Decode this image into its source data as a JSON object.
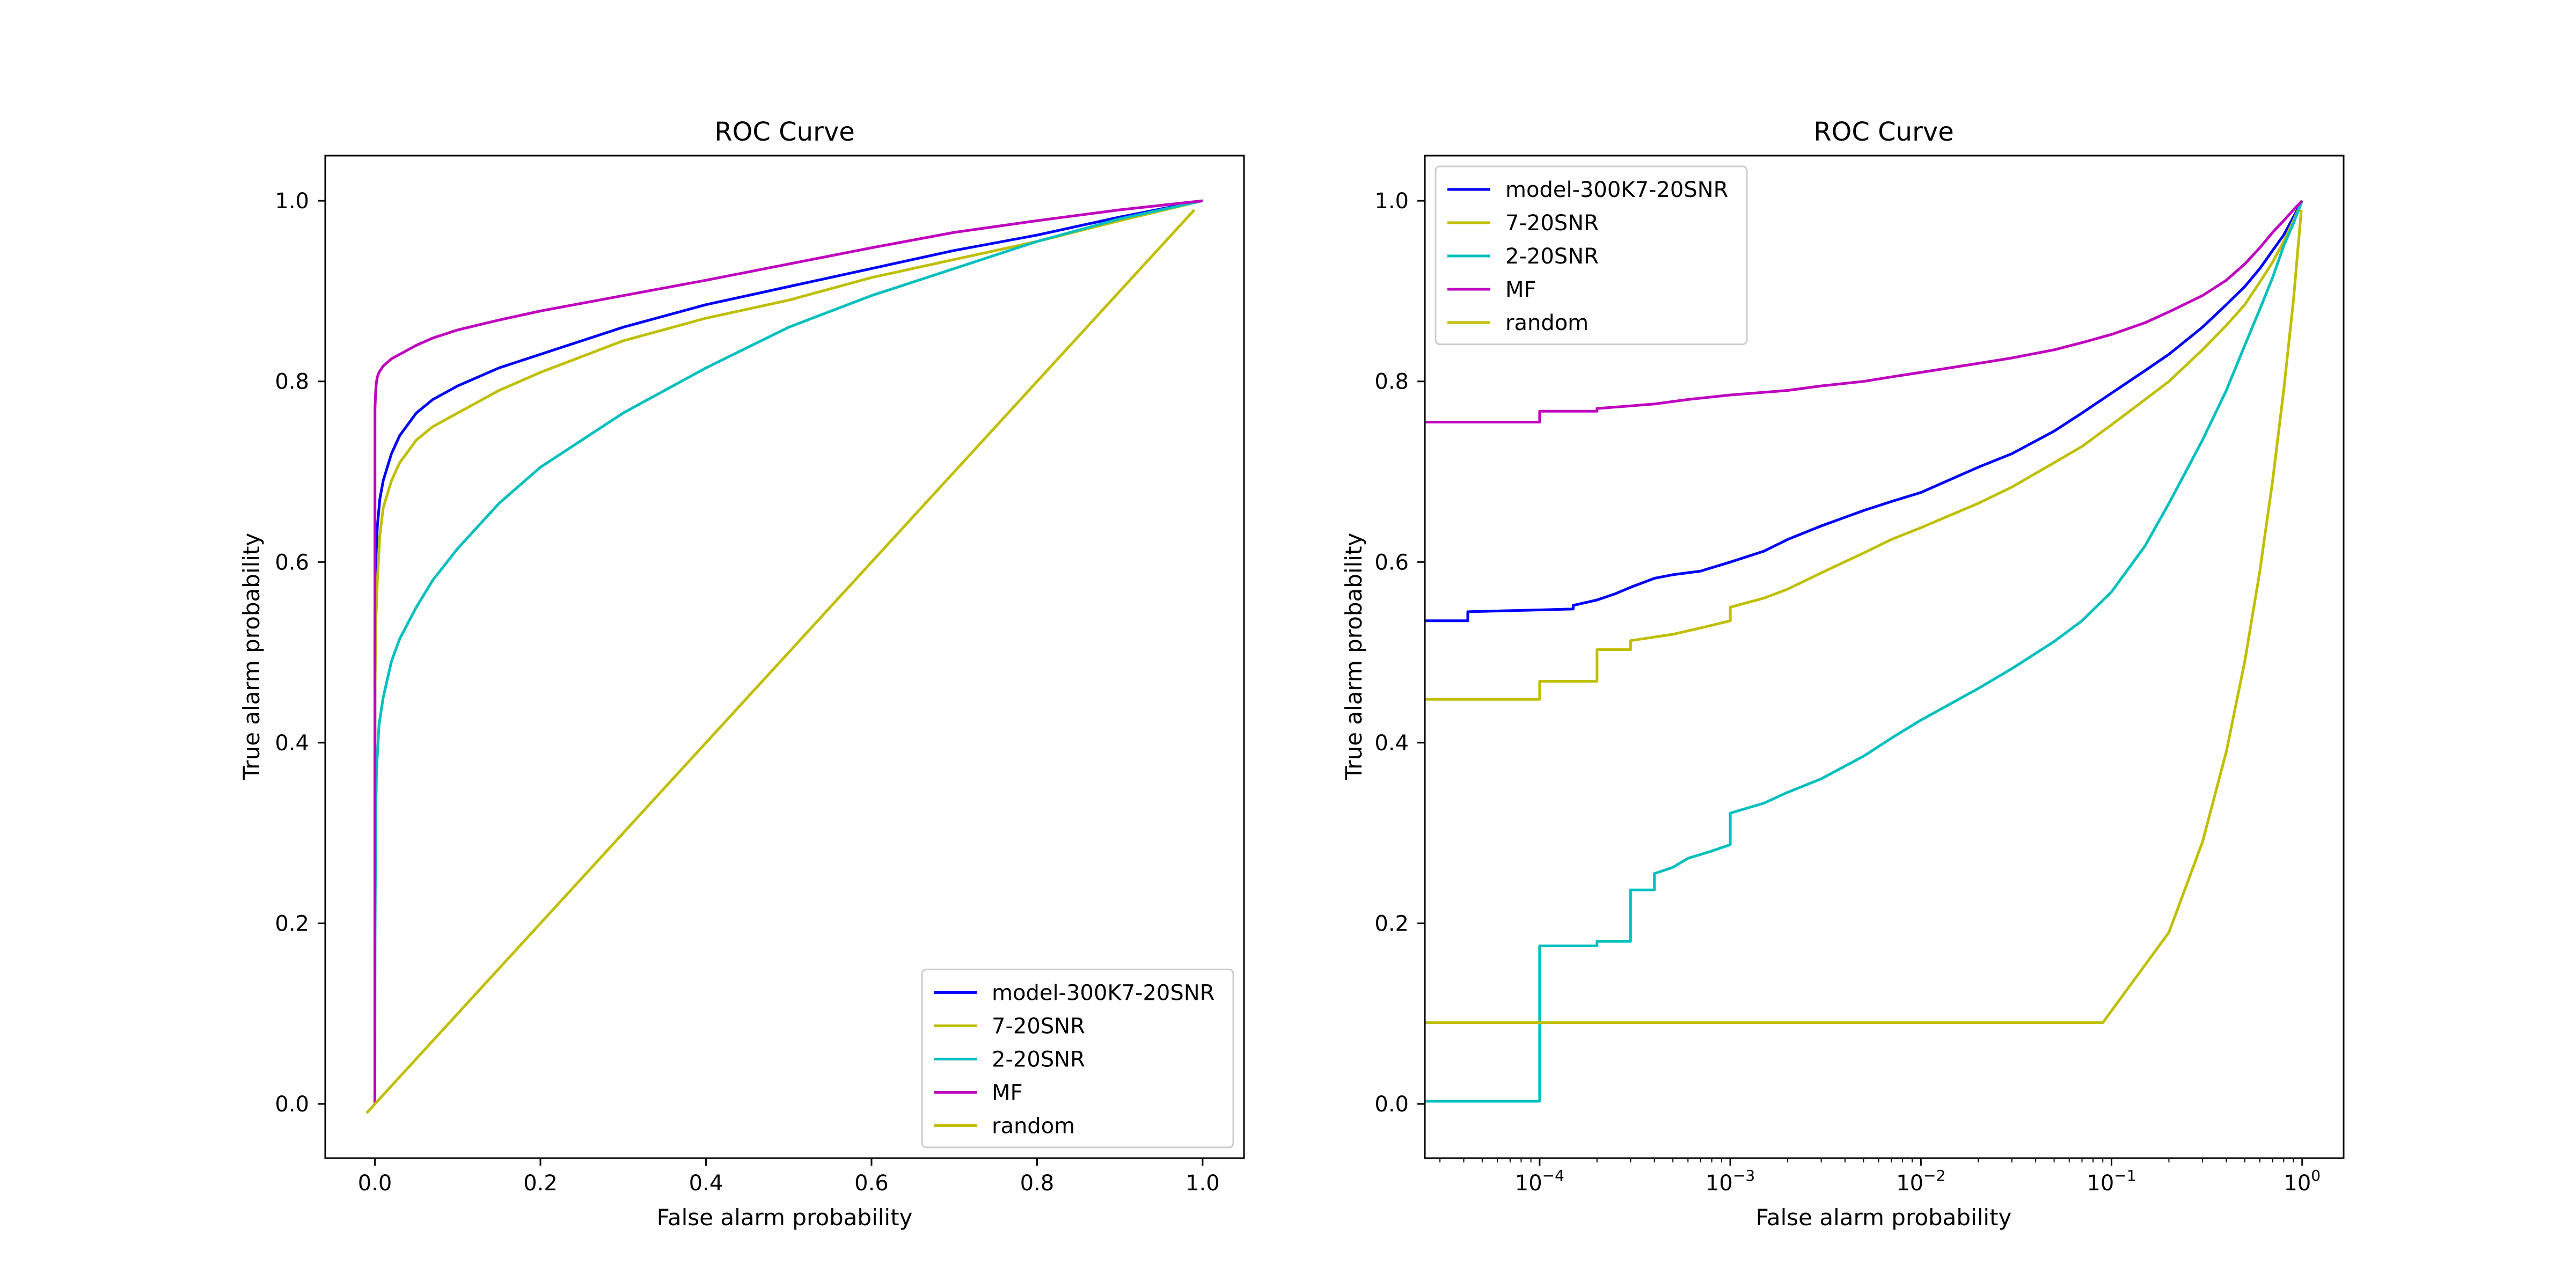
{
  "chart_data": [
    {
      "type": "line",
      "title": "ROC Curve",
      "xlabel": "False alarm probability",
      "ylabel": "True alarm probability",
      "xscale": "linear",
      "xlim": [
        -0.06,
        1.05
      ],
      "ylim": [
        -0.06,
        1.05
      ],
      "xticks": [
        0.0,
        0.2,
        0.4,
        0.6,
        0.8,
        1.0
      ],
      "xtick_labels": [
        "0.0",
        "0.2",
        "0.4",
        "0.6",
        "0.8",
        "1.0"
      ],
      "yticks": [
        0.0,
        0.2,
        0.4,
        0.6,
        0.8,
        1.0
      ],
      "ytick_labels": [
        "0.0",
        "0.2",
        "0.4",
        "0.6",
        "0.8",
        "1.0"
      ],
      "grid": false,
      "legend_position": "lower-right",
      "series": [
        {
          "name": "model-300K7-20SNR",
          "color": "#0000ff",
          "x": [
            0,
            0.0001,
            0.001,
            0.003,
            0.006,
            0.01,
            0.02,
            0.03,
            0.05,
            0.07,
            0.1,
            0.15,
            0.2,
            0.3,
            0.4,
            0.5,
            0.6,
            0.7,
            0.8,
            0.9,
            1.0
          ],
          "y": [
            0.0,
            0.54,
            0.6,
            0.64,
            0.67,
            0.69,
            0.72,
            0.74,
            0.765,
            0.78,
            0.795,
            0.815,
            0.83,
            0.86,
            0.885,
            0.905,
            0.925,
            0.945,
            0.962,
            0.982,
            1.0
          ]
        },
        {
          "name": "7-20SNR",
          "color": "#bfbf00",
          "x": [
            0,
            0.0001,
            0.001,
            0.003,
            0.006,
            0.01,
            0.02,
            0.03,
            0.05,
            0.07,
            0.1,
            0.15,
            0.2,
            0.3,
            0.4,
            0.5,
            0.6,
            0.7,
            0.8,
            0.9,
            1.0
          ],
          "y": [
            0.0,
            0.45,
            0.53,
            0.58,
            0.63,
            0.66,
            0.69,
            0.71,
            0.735,
            0.75,
            0.765,
            0.79,
            0.81,
            0.845,
            0.87,
            0.89,
            0.915,
            0.935,
            0.955,
            0.978,
            1.0
          ]
        },
        {
          "name": "2-20SNR",
          "color": "#00bfbf",
          "x": [
            0,
            0.0001,
            0.001,
            0.002,
            0.005,
            0.01,
            0.02,
            0.03,
            0.05,
            0.07,
            0.1,
            0.15,
            0.2,
            0.3,
            0.4,
            0.5,
            0.6,
            0.7,
            0.8,
            0.9,
            1.0
          ],
          "y": [
            0.0,
            0.17,
            0.32,
            0.37,
            0.42,
            0.45,
            0.49,
            0.515,
            0.55,
            0.58,
            0.615,
            0.665,
            0.705,
            0.765,
            0.815,
            0.86,
            0.895,
            0.925,
            0.955,
            0.98,
            1.0
          ]
        },
        {
          "name": "MF",
          "color": "#bf00bf",
          "x": [
            0,
            0.0001,
            0.001,
            0.002,
            0.003,
            0.005,
            0.01,
            0.02,
            0.03,
            0.05,
            0.07,
            0.1,
            0.15,
            0.2,
            0.3,
            0.4,
            0.5,
            0.6,
            0.7,
            0.8,
            0.9,
            1.0
          ],
          "y": [
            0.0,
            0.77,
            0.79,
            0.8,
            0.805,
            0.81,
            0.817,
            0.825,
            0.83,
            0.84,
            0.848,
            0.857,
            0.868,
            0.878,
            0.895,
            0.912,
            0.93,
            0.948,
            0.965,
            0.978,
            0.99,
            1.0
          ]
        },
        {
          "name": "random",
          "color": "#bfbf00",
          "x": [
            -0.01,
            0.99
          ],
          "y": [
            -0.01,
            0.99
          ]
        }
      ]
    },
    {
      "type": "line",
      "title": "ROC Curve",
      "xlabel": "False alarm probability",
      "ylabel": "True alarm probability",
      "xscale": "log",
      "xlim": [
        2.5e-05,
        1.65
      ],
      "ylim": [
        -0.06,
        1.05
      ],
      "xticks": [
        0.0001,
        0.001,
        0.01,
        0.1,
        1
      ],
      "xtick_labels": [
        [
          "10",
          "−4"
        ],
        [
          "10",
          "−3"
        ],
        [
          "10",
          "−2"
        ],
        [
          "10",
          "−1"
        ],
        [
          "10",
          "0"
        ]
      ],
      "yticks": [
        0.0,
        0.2,
        0.4,
        0.6,
        0.8,
        1.0
      ],
      "ytick_labels": [
        "0.0",
        "0.2",
        "0.4",
        "0.6",
        "0.8",
        "1.0"
      ],
      "grid": false,
      "legend_position": "upper-left",
      "series": [
        {
          "name": "model-300K7-20SNR",
          "color": "#0000ff",
          "x": [
            2.5e-05,
            4.2e-05,
            4.2e-05,
            0.0001,
            0.00015,
            0.00015,
            0.0002,
            0.00025,
            0.0003,
            0.0004,
            0.0005,
            0.0007,
            0.001,
            0.0015,
            0.002,
            0.003,
            0.005,
            0.007,
            0.01,
            0.02,
            0.03,
            0.05,
            0.07,
            0.1,
            0.15,
            0.2,
            0.3,
            0.4,
            0.5,
            0.6,
            0.7,
            0.8,
            0.9,
            1.0
          ],
          "y": [
            0.535,
            0.535,
            0.545,
            0.547,
            0.548,
            0.552,
            0.558,
            0.565,
            0.572,
            0.582,
            0.586,
            0.59,
            0.6,
            0.612,
            0.625,
            0.64,
            0.657,
            0.667,
            0.677,
            0.705,
            0.72,
            0.745,
            0.765,
            0.787,
            0.812,
            0.83,
            0.86,
            0.885,
            0.905,
            0.925,
            0.945,
            0.962,
            0.982,
            1.0
          ]
        },
        {
          "name": "7-20SNR",
          "color": "#bfbf00",
          "x": [
            2.5e-05,
            0.0001,
            0.0001,
            0.0002,
            0.0002,
            0.0003,
            0.0003,
            0.0005,
            0.0007,
            0.001,
            0.001,
            0.0015,
            0.002,
            0.003,
            0.005,
            0.007,
            0.01,
            0.02,
            0.03,
            0.05,
            0.07,
            0.1,
            0.15,
            0.2,
            0.3,
            0.4,
            0.5,
            0.6,
            0.7,
            0.8,
            0.9,
            1.0
          ],
          "y": [
            0.448,
            0.448,
            0.468,
            0.468,
            0.503,
            0.503,
            0.513,
            0.52,
            0.527,
            0.535,
            0.55,
            0.56,
            0.57,
            0.588,
            0.61,
            0.625,
            0.638,
            0.665,
            0.683,
            0.71,
            0.728,
            0.752,
            0.78,
            0.8,
            0.835,
            0.862,
            0.885,
            0.91,
            0.932,
            0.955,
            0.978,
            1.0
          ]
        },
        {
          "name": "2-20SNR",
          "color": "#00bfbf",
          "x": [
            2.5e-05,
            0.0001,
            0.0001,
            0.0002,
            0.0002,
            0.0003,
            0.0003,
            0.0004,
            0.0004,
            0.0005,
            0.0006,
            0.0008,
            0.001,
            0.001,
            0.0015,
            0.002,
            0.003,
            0.005,
            0.007,
            0.01,
            0.02,
            0.03,
            0.05,
            0.07,
            0.1,
            0.15,
            0.2,
            0.3,
            0.4,
            0.5,
            0.6,
            0.7,
            0.8,
            0.9,
            1.0
          ],
          "y": [
            0.003,
            0.003,
            0.175,
            0.175,
            0.18,
            0.18,
            0.237,
            0.237,
            0.255,
            0.262,
            0.272,
            0.28,
            0.287,
            0.322,
            0.333,
            0.345,
            0.36,
            0.385,
            0.405,
            0.425,
            0.46,
            0.482,
            0.512,
            0.535,
            0.567,
            0.618,
            0.665,
            0.735,
            0.79,
            0.84,
            0.88,
            0.915,
            0.95,
            0.975,
            1.0
          ]
        },
        {
          "name": "MF",
          "color": "#bf00bf",
          "x": [
            2.5e-05,
            0.0001,
            0.0001,
            0.0002,
            0.0002,
            0.0004,
            0.0006,
            0.001,
            0.002,
            0.003,
            0.005,
            0.007,
            0.01,
            0.02,
            0.03,
            0.05,
            0.07,
            0.1,
            0.15,
            0.2,
            0.3,
            0.4,
            0.5,
            0.6,
            0.7,
            0.8,
            0.9,
            1.0
          ],
          "y": [
            0.755,
            0.755,
            0.767,
            0.767,
            0.77,
            0.775,
            0.78,
            0.785,
            0.79,
            0.795,
            0.8,
            0.805,
            0.81,
            0.82,
            0.826,
            0.835,
            0.843,
            0.852,
            0.865,
            0.877,
            0.895,
            0.912,
            0.93,
            0.948,
            0.965,
            0.978,
            0.99,
            1.0
          ]
        },
        {
          "name": "random",
          "color": "#bfbf00",
          "x": [
            2.5e-05,
            0.09,
            0.2,
            0.3,
            0.4,
            0.5,
            0.6,
            0.7,
            0.8,
            0.9,
            0.99
          ],
          "y": [
            0.09,
            0.09,
            0.19,
            0.29,
            0.39,
            0.49,
            0.59,
            0.69,
            0.79,
            0.89,
            0.99
          ]
        }
      ]
    }
  ]
}
